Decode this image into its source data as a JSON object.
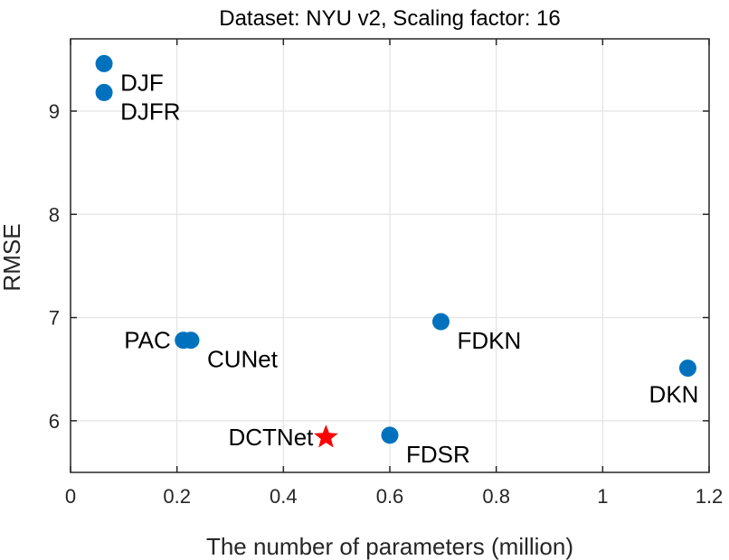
{
  "chart_data": {
    "type": "scatter",
    "title": "Dataset: NYU v2, Scaling factor: 16",
    "xlabel": "The number of parameters (million)",
    "ylabel": "RMSE",
    "xlim": [
      0,
      1.2
    ],
    "ylim": [
      5.5,
      9.7
    ],
    "xticks": [
      0,
      0.2,
      0.4,
      0.6,
      0.8,
      1,
      1.2
    ],
    "xtick_labels": [
      "0",
      "0.2",
      "0.4",
      "0.6",
      "0.8",
      "1",
      "1.2"
    ],
    "yticks": [
      6,
      7,
      8,
      9
    ],
    "ytick_labels": [
      "6",
      "7",
      "8",
      "9"
    ],
    "grid": true,
    "points": [
      {
        "label": "DJF",
        "x": 0.063,
        "y": 9.46,
        "marker": "circle",
        "color": "#0072BD",
        "label_pos": "below-right"
      },
      {
        "label": "DJFR",
        "x": 0.063,
        "y": 9.18,
        "marker": "circle",
        "color": "#0072BD",
        "label_pos": "below-right"
      },
      {
        "label": "PAC",
        "x": 0.212,
        "y": 6.78,
        "marker": "circle",
        "color": "#0072BD",
        "label_pos": "left"
      },
      {
        "label": "CUNet",
        "x": 0.226,
        "y": 6.78,
        "marker": "circle",
        "color": "#0072BD",
        "label_pos": "below-right"
      },
      {
        "label": "FDKN",
        "x": 0.696,
        "y": 6.96,
        "marker": "circle",
        "color": "#0072BD",
        "label_pos": "below-right"
      },
      {
        "label": "DKN",
        "x": 1.16,
        "y": 6.51,
        "marker": "circle",
        "color": "#0072BD",
        "label_pos": "below-left"
      },
      {
        "label": "FDSR",
        "x": 0.6,
        "y": 5.86,
        "marker": "circle",
        "color": "#0072BD",
        "label_pos": "below-right"
      },
      {
        "label": "DCTNet",
        "x": 0.48,
        "y": 5.84,
        "marker": "star",
        "color": "#FF0000",
        "label_pos": "left"
      }
    ]
  }
}
